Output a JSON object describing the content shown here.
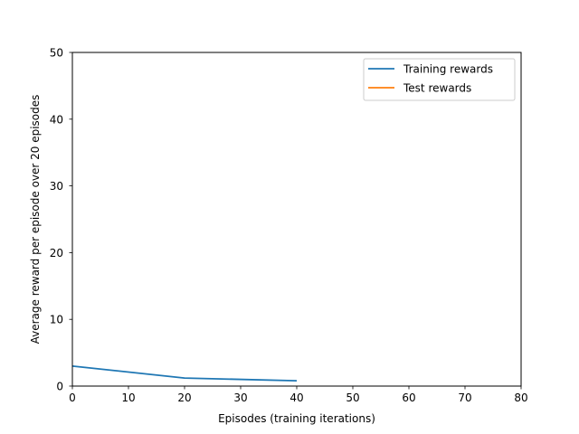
{
  "chart_data": {
    "type": "line",
    "title": "",
    "xlabel": "Episodes (training iterations)",
    "ylabel": "Average reward per episode over 20 episodes",
    "xlim": [
      0,
      80
    ],
    "ylim": [
      0,
      50
    ],
    "xticks": [
      "0",
      "10",
      "20",
      "30",
      "40",
      "50",
      "60",
      "70",
      "80"
    ],
    "yticks": [
      "0",
      "10",
      "20",
      "30",
      "40",
      "50"
    ],
    "grid": false,
    "legend_position": "upper-right",
    "series": [
      {
        "name": "Training rewards",
        "color": "#1f77b4",
        "x": [
          0,
          20,
          40
        ],
        "y": [
          3.0,
          1.2,
          0.8
        ]
      },
      {
        "name": "Test rewards",
        "color": "#ff7f0e",
        "x": [],
        "y": []
      }
    ]
  }
}
